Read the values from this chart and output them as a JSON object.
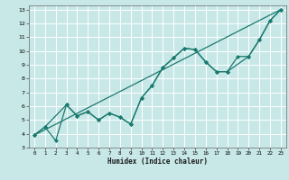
{
  "xlabel": "Humidex (Indice chaleur)",
  "xlim": [
    -0.5,
    23.5
  ],
  "ylim": [
    3,
    13.3
  ],
  "xticks": [
    0,
    1,
    2,
    3,
    4,
    5,
    6,
    7,
    8,
    9,
    10,
    11,
    12,
    13,
    14,
    15,
    16,
    17,
    18,
    19,
    20,
    21,
    22,
    23
  ],
  "yticks": [
    3,
    4,
    5,
    6,
    7,
    8,
    9,
    10,
    11,
    12,
    13
  ],
  "bg_color": "#c8e8e8",
  "grid_color": "#e8f8f8",
  "line_color": "#1a7a6e",
  "jagged_x": [
    0,
    1,
    2,
    3,
    4,
    5,
    6,
    7,
    8,
    9,
    10,
    11,
    12,
    13,
    14,
    15,
    16,
    17,
    18,
    19,
    20,
    21,
    22,
    23
  ],
  "jagged_y": [
    3.9,
    4.5,
    3.5,
    6.1,
    5.3,
    5.6,
    5.0,
    5.5,
    5.2,
    4.7,
    6.6,
    7.5,
    8.8,
    9.5,
    10.2,
    10.1,
    9.2,
    8.5,
    8.5,
    9.6,
    9.6,
    10.8,
    12.2,
    13.0
  ],
  "smooth_x": [
    0,
    1,
    3,
    4,
    5,
    6,
    7,
    8,
    9,
    10,
    11,
    12,
    13,
    14,
    15,
    16,
    17,
    18,
    20,
    21,
    22,
    23
  ],
  "smooth_y": [
    3.9,
    4.5,
    6.1,
    5.3,
    5.6,
    5.0,
    5.5,
    5.2,
    4.7,
    6.6,
    7.5,
    8.8,
    9.5,
    10.2,
    10.1,
    9.2,
    8.5,
    8.5,
    9.6,
    10.8,
    12.2,
    13.0
  ],
  "trend_x": [
    0,
    23
  ],
  "trend_y": [
    3.9,
    13.0
  ],
  "figsize": [
    3.2,
    2.0
  ],
  "dpi": 100
}
